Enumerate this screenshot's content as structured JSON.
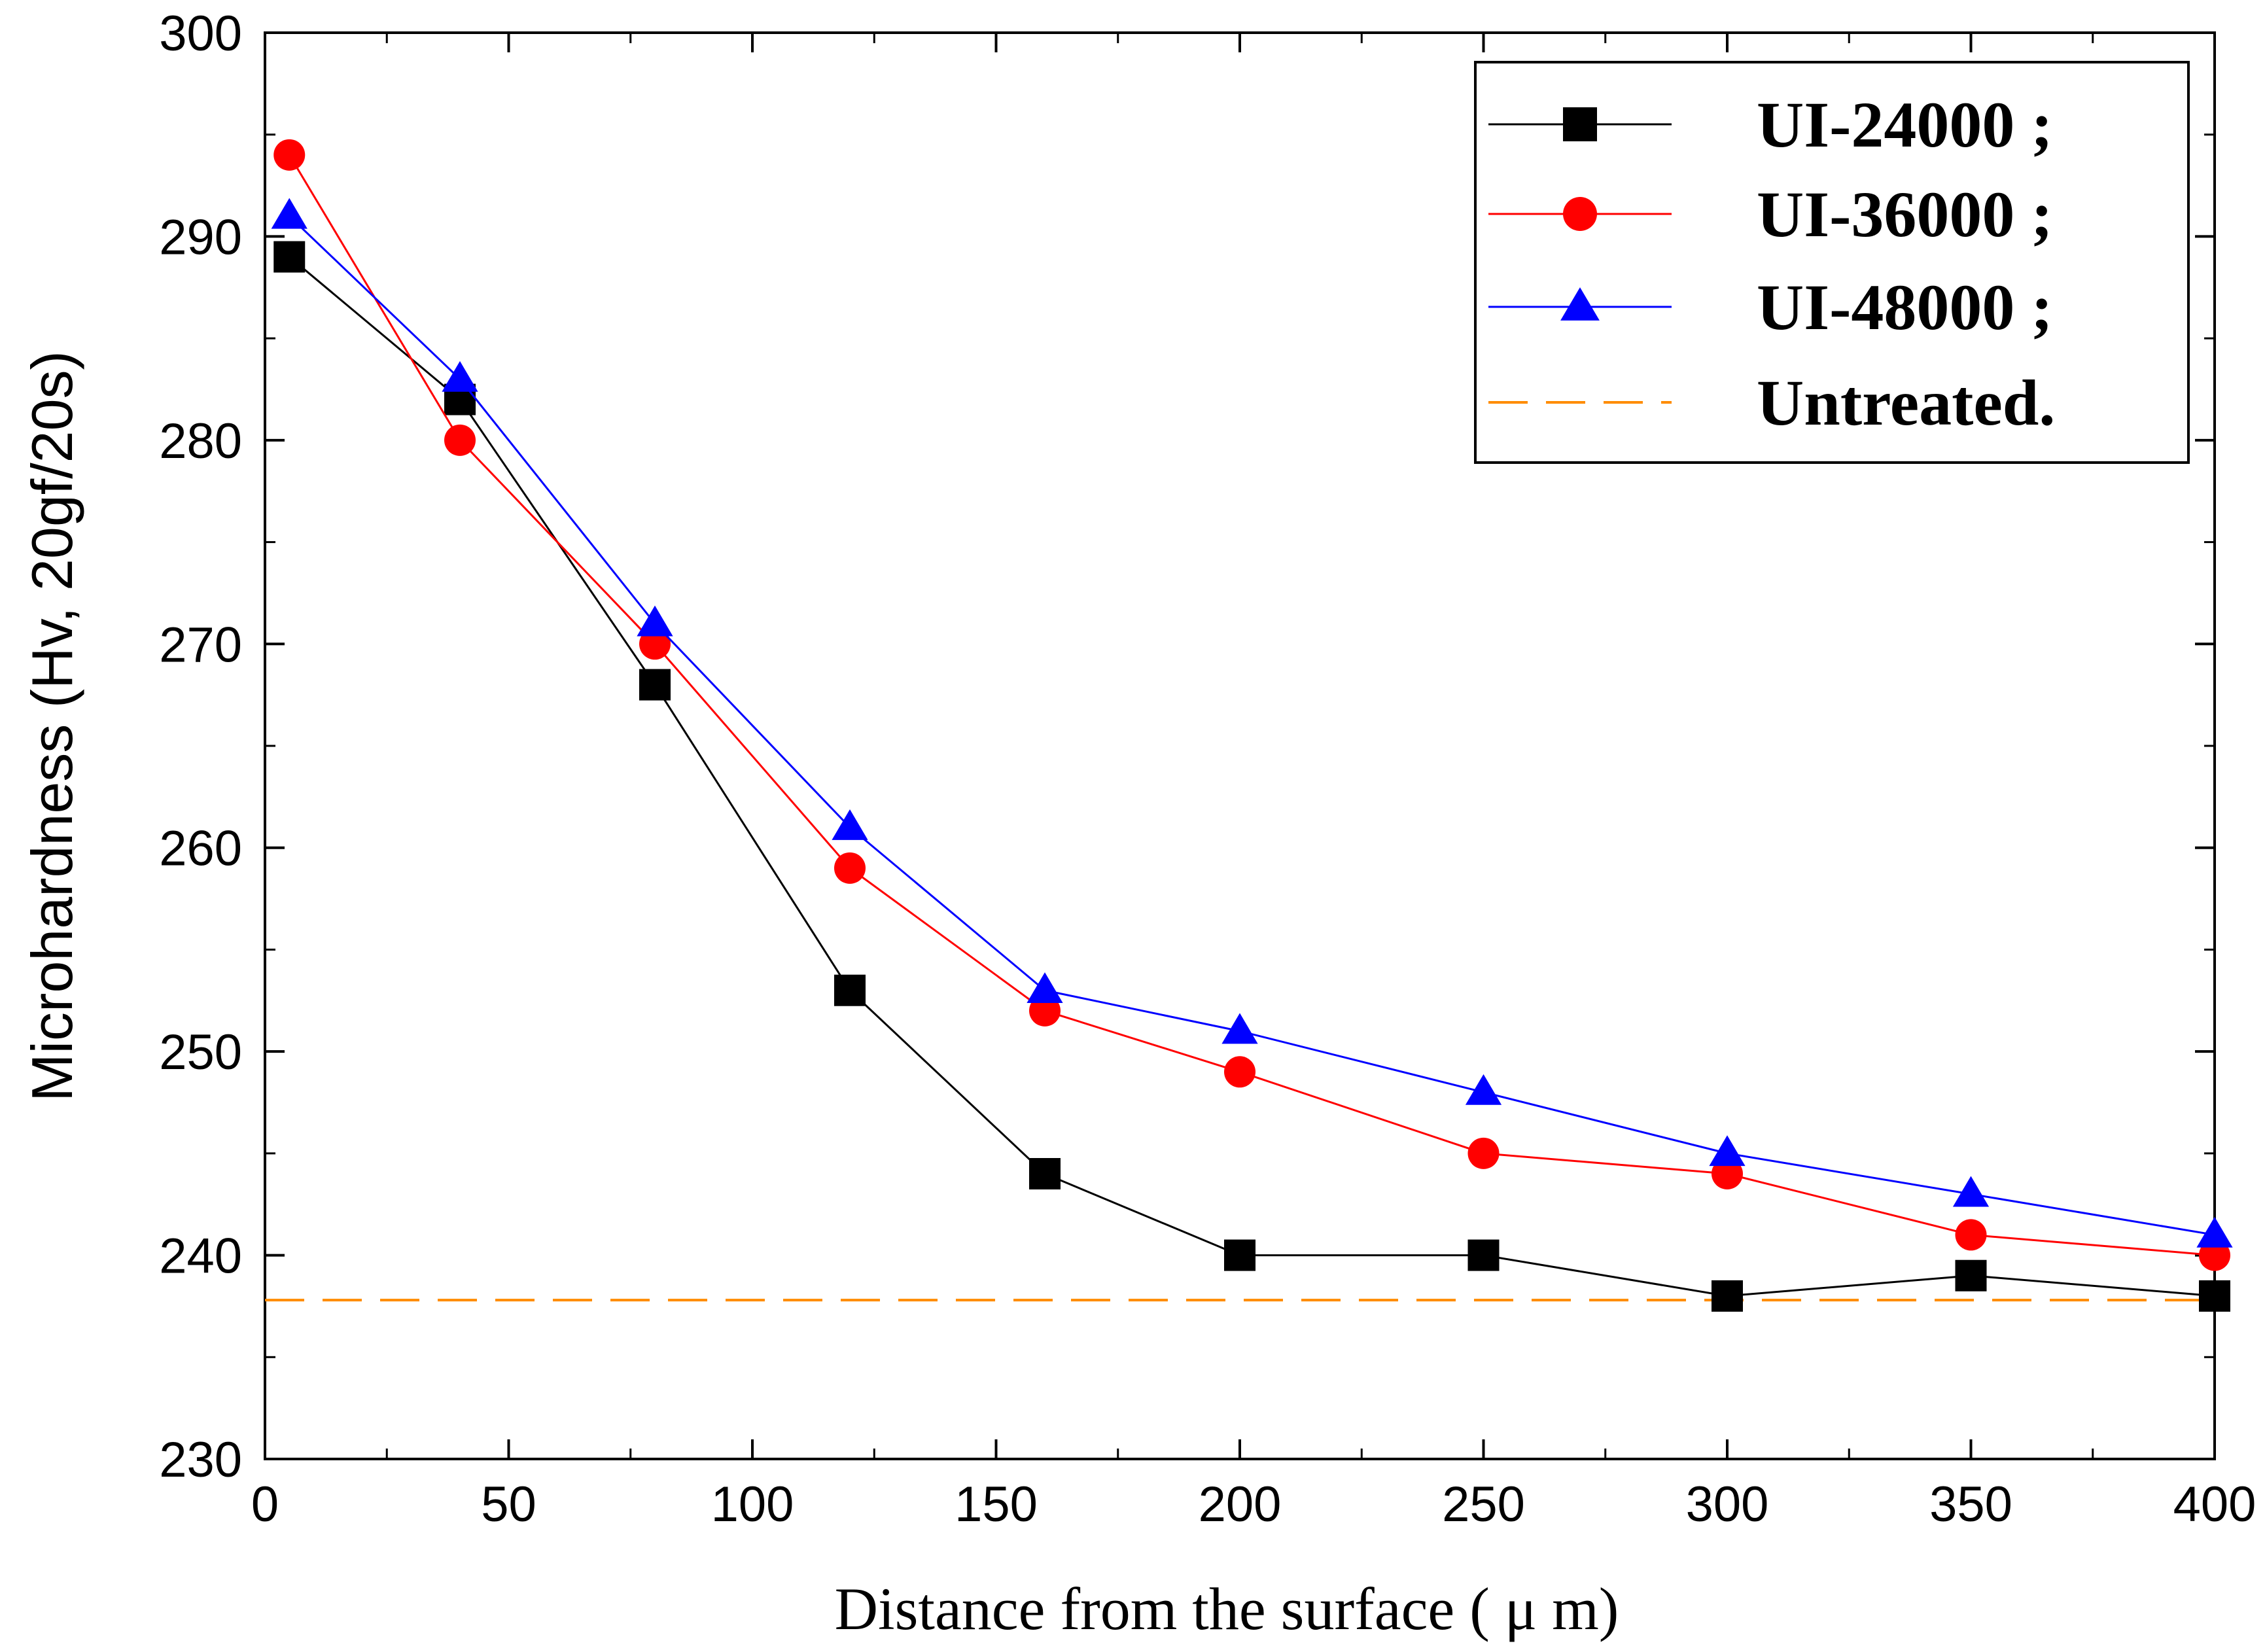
{
  "chart_data": {
    "type": "line",
    "title": "",
    "xlabel": "Distance from the surface ( μ m)",
    "ylabel": "Microhardness (Hv, 20gf/20s)",
    "xlim": [
      0,
      400
    ],
    "ylim": [
      230,
      300
    ],
    "xticks": [
      0,
      50,
      100,
      150,
      200,
      250,
      300,
      350,
      400
    ],
    "yticks": [
      230,
      240,
      250,
      260,
      270,
      280,
      290,
      300
    ],
    "x": [
      5,
      40,
      80,
      120,
      160,
      200,
      250,
      300,
      350,
      400
    ],
    "series": [
      {
        "name": "UI-24000 ;",
        "marker": "square",
        "color": "#000000",
        "values": [
          289,
          282,
          268,
          253,
          244,
          240,
          240,
          238,
          239,
          238
        ]
      },
      {
        "name": "UI-36000 ;",
        "marker": "circle",
        "color": "#ff0000",
        "values": [
          294,
          280,
          270,
          259,
          252,
          249,
          245,
          244,
          241,
          240
        ]
      },
      {
        "name": "UI-48000 ;",
        "marker": "triangle",
        "color": "#0000ff",
        "values": [
          291,
          283,
          271,
          261,
          253,
          251,
          248,
          245,
          243,
          241
        ]
      }
    ],
    "reference_lines": [
      {
        "name": "Untreated.",
        "y": 237.8,
        "style": "dashed",
        "color": "#ff8c00"
      }
    ],
    "legend_position": "top-right",
    "grid": false
  }
}
